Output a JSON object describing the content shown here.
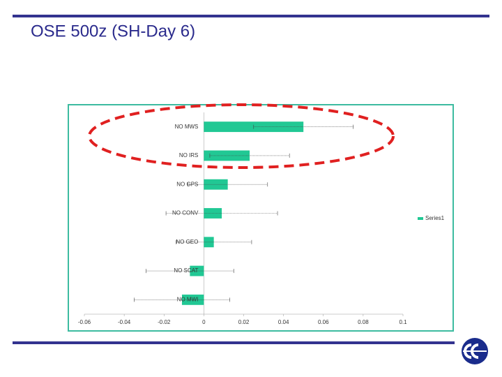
{
  "chart_data": {
    "type": "bar",
    "orientation": "horizontal",
    "title": "OSE 500z (SH-Day 6)",
    "categories": [
      "NO MWS",
      "NO IRS",
      "NO GPS",
      "NO CONV",
      "NO GEO",
      "NO SCAT",
      "NO MWI"
    ],
    "series": [
      {
        "name": "Series1",
        "color": "#21c894",
        "values": [
          0.05,
          0.023,
          0.012,
          0.009,
          0.005,
          -0.007,
          -0.011
        ],
        "errors": [
          0.025,
          0.02,
          0.02,
          0.028,
          0.019,
          0.022,
          0.024
        ]
      }
    ],
    "xlim": [
      -0.06,
      0.1
    ],
    "xticks": [
      -0.06,
      -0.04,
      -0.02,
      0,
      0.02,
      0.04,
      0.06,
      0.08,
      0.1
    ],
    "legend": "right"
  }
}
